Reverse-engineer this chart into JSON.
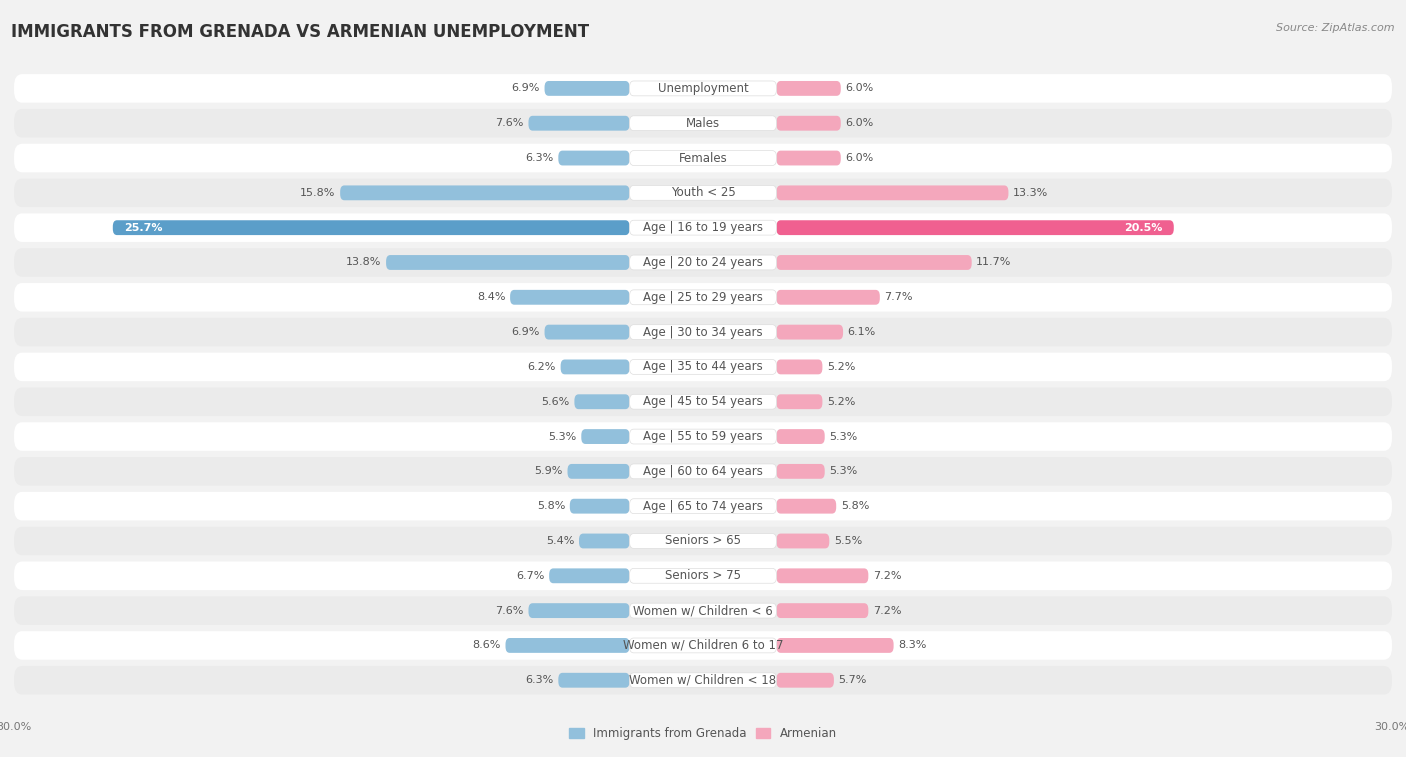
{
  "title": "IMMIGRANTS FROM GRENADA VS ARMENIAN UNEMPLOYMENT",
  "source": "Source: ZipAtlas.com",
  "categories": [
    "Unemployment",
    "Males",
    "Females",
    "Youth < 25",
    "Age | 16 to 19 years",
    "Age | 20 to 24 years",
    "Age | 25 to 29 years",
    "Age | 30 to 34 years",
    "Age | 35 to 44 years",
    "Age | 45 to 54 years",
    "Age | 55 to 59 years",
    "Age | 60 to 64 years",
    "Age | 65 to 74 years",
    "Seniors > 65",
    "Seniors > 75",
    "Women w/ Children < 6",
    "Women w/ Children 6 to 17",
    "Women w/ Children < 18"
  ],
  "left_values": [
    6.9,
    7.6,
    6.3,
    15.8,
    25.7,
    13.8,
    8.4,
    6.9,
    6.2,
    5.6,
    5.3,
    5.9,
    5.8,
    5.4,
    6.7,
    7.6,
    8.6,
    6.3
  ],
  "right_values": [
    6.0,
    6.0,
    6.0,
    13.3,
    20.5,
    11.7,
    7.7,
    6.1,
    5.2,
    5.2,
    5.3,
    5.3,
    5.8,
    5.5,
    7.2,
    7.2,
    8.3,
    5.7
  ],
  "left_color": "#92c0dc",
  "right_color": "#f4a7bc",
  "left_label": "Immigrants from Grenada",
  "right_label": "Armenian",
  "highlight_left_color": "#5b9ec9",
  "highlight_right_color": "#f06090",
  "highlight_index": 4,
  "axis_limit": 30.0,
  "background_color": "#f2f2f2",
  "row_color_even": "#ffffff",
  "row_color_odd": "#ebebeb",
  "title_fontsize": 12,
  "label_fontsize": 8.5,
  "value_fontsize": 8,
  "axis_fontsize": 8,
  "source_fontsize": 8
}
